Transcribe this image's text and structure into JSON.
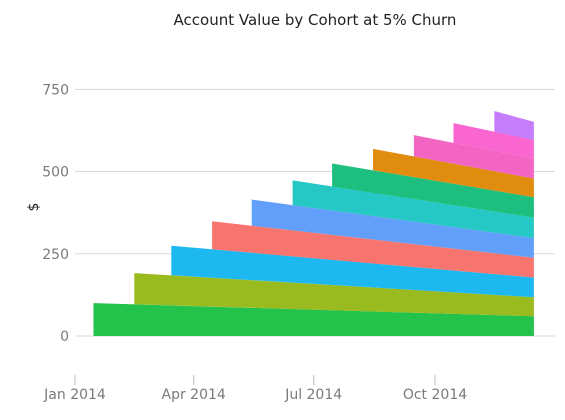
{
  "chart_data": {
    "type": "area",
    "stacked": true,
    "title": "Account Value by Cohort at 5% Churn",
    "xlabel": "",
    "ylabel": "$",
    "grid": true,
    "legend": "none",
    "ylim": [
      0,
      900
    ],
    "yticks": [
      0,
      250,
      500,
      750
    ],
    "xlim": [
      "2014-01-01",
      "2014-12-31"
    ],
    "xticks": [
      {
        "date": "2014-01-01",
        "label": "Jan 2014"
      },
      {
        "date": "2014-04-01",
        "label": "Apr 2014"
      },
      {
        "date": "2014-07-01",
        "label": "Jul 2014"
      },
      {
        "date": "2014-10-01",
        "label": "Oct 2014"
      }
    ],
    "x_end": "2014-12-15",
    "series": [
      {
        "start": "2014-01-15",
        "value_start": 100,
        "value_end": 60,
        "color": "#22c24b"
      },
      {
        "start": "2014-02-15",
        "value_start": 95,
        "value_end": 58,
        "color": "#9abb1f"
      },
      {
        "start": "2014-03-15",
        "value_start": 90,
        "value_end": 60,
        "color": "#1eb8f0"
      },
      {
        "start": "2014-04-15",
        "value_start": 85,
        "value_end": 60,
        "color": "#f8756f"
      },
      {
        "start": "2014-05-15",
        "value_start": 80,
        "value_end": 60,
        "color": "#629ffb"
      },
      {
        "start": "2014-06-15",
        "value_start": 75,
        "value_end": 62,
        "color": "#25c8c4"
      },
      {
        "start": "2014-07-15",
        "value_start": 70,
        "value_end": 62,
        "color": "#1dbf7e"
      },
      {
        "start": "2014-08-15",
        "value_start": 65,
        "value_end": 57,
        "color": "#df8c0f"
      },
      {
        "start": "2014-09-15",
        "value_start": 65,
        "value_end": 60,
        "color": "#f365c3"
      },
      {
        "start": "2014-10-15",
        "value_start": 60,
        "value_end": 57,
        "color": "#fa66cf"
      },
      {
        "start": "2014-11-15",
        "value_start": 63,
        "value_end": 55,
        "color": "#c47dfb"
      }
    ]
  }
}
